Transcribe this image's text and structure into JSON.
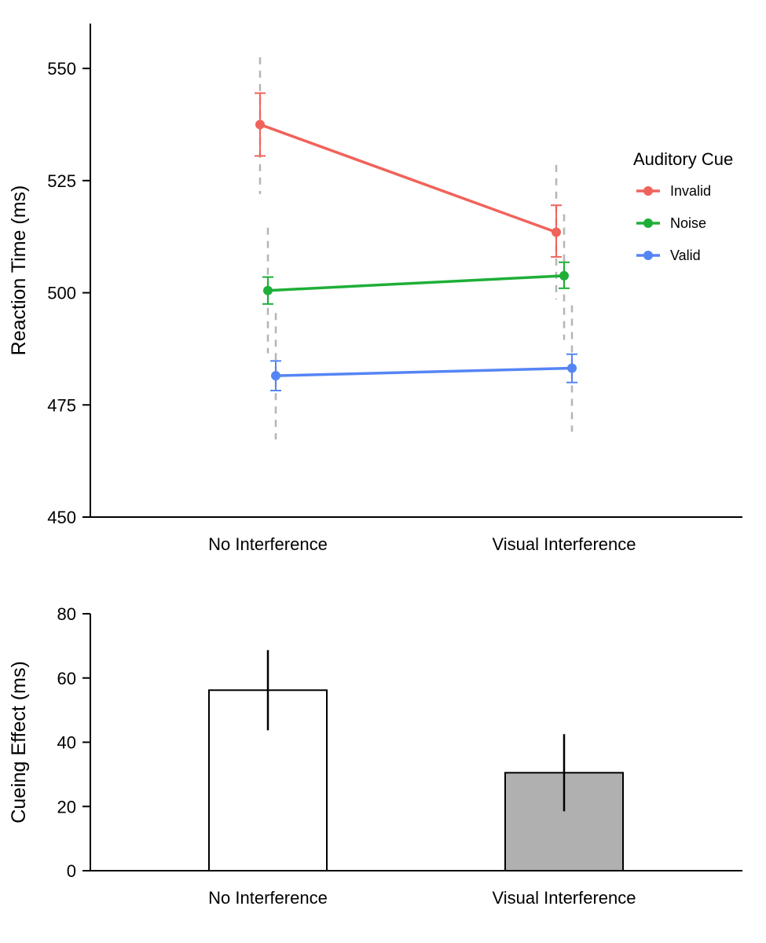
{
  "chart_data": [
    {
      "type": "line",
      "categories": [
        "No Interference",
        "Visual Interference"
      ],
      "ylabel": "Reaction Time (ms)",
      "ylim": [
        450,
        560
      ],
      "yticks": [
        450,
        475,
        500,
        525,
        550
      ],
      "legend": {
        "title": "Auditory Cue",
        "position": "right"
      },
      "series": [
        {
          "name": "Invalid",
          "color": "#F0635B",
          "values": [
            537.5,
            513.5
          ],
          "error_bars": [
            [
              530.5,
              544.5
            ],
            [
              508,
              519.5
            ]
          ],
          "wide_intervals": [
            [
              522,
              552.5
            ],
            [
              498.5,
              528.5
            ]
          ]
        },
        {
          "name": "Noise",
          "color": "#1EAF37",
          "values": [
            500.5,
            503.8
          ],
          "error_bars": [
            [
              497.5,
              503.5
            ],
            [
              501,
              506.8
            ]
          ],
          "wide_intervals": [
            [
              486.5,
              514.5
            ],
            [
              489.5,
              517.5
            ]
          ]
        },
        {
          "name": "Valid",
          "color": "#5585F5",
          "values": [
            481.5,
            483.2
          ],
          "error_bars": [
            [
              478.2,
              484.8
            ],
            [
              480,
              486.3
            ]
          ],
          "wide_intervals": [
            [
              467.3,
              495.5
            ],
            [
              469,
              497.2
            ]
          ]
        }
      ]
    },
    {
      "type": "bar",
      "categories": [
        "No Interference",
        "Visual Interference"
      ],
      "ylabel": "Cueing Effect (ms)",
      "ylim": [
        0,
        80
      ],
      "yticks": [
        0,
        20,
        40,
        60,
        80
      ],
      "values": [
        56.2,
        30.5
      ],
      "error_bars": [
        [
          43.7,
          68.7
        ],
        [
          18.5,
          42.5
        ]
      ],
      "bar_colors": [
        "#FFFFFF",
        "#B0B0B0"
      ]
    }
  ]
}
